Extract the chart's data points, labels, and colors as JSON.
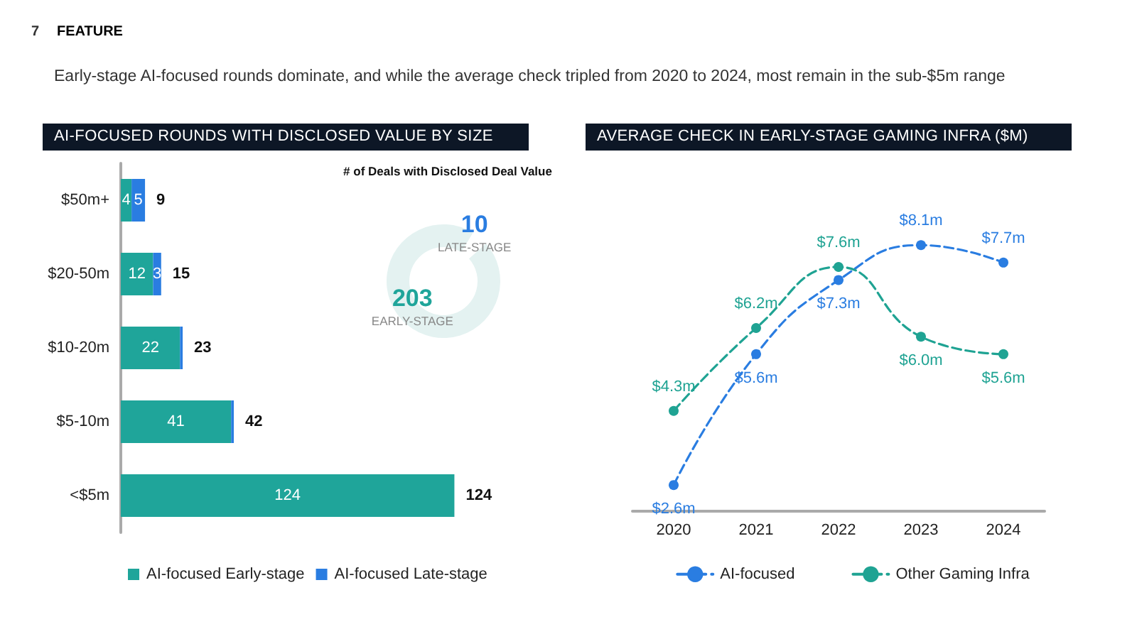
{
  "chart_data": [
    {
      "type": "bar",
      "orientation": "horizontal",
      "stacked": true,
      "title": "AI-FOCUSED ROUNDS WITH DISCLOSED VALUE BY SIZE",
      "subtitle": "Early-stage AI-focused rounds dominate, and while the average check tripled from 2020 to 2024, most remain in the sub-$5m range",
      "annotations": [
        "7",
        "FEATURE"
      ],
      "categories": [
        "$50m+",
        "$20-50m",
        "$10-20m",
        "$5-10m",
        "<$5m"
      ],
      "series": [
        {
          "name": "AI-focused Early-stage",
          "color": "#1fa59a",
          "values": [
            4,
            12,
            22,
            41,
            124
          ],
          "value_labels": [
            "4",
            "12",
            "22",
            "41",
            "124"
          ]
        },
        {
          "name": "AI-focused Late-stage",
          "color": "#2a7de1",
          "values": [
            5,
            3,
            1,
            1,
            0
          ],
          "value_labels": [
            "5",
            "3",
            null,
            null,
            null
          ]
        }
      ],
      "totals": [
        "9",
        "15",
        "23",
        "42",
        "124"
      ],
      "legend": "bottom",
      "grid": false
    },
    {
      "type": "donut",
      "title": "# of Deals with Disclosed Deal Value",
      "categories": [
        "EARLY-STAGE",
        "LATE-STAGE"
      ],
      "values": [
        203,
        10
      ],
      "colors": [
        "#e4f2f1",
        "#ffffff"
      ],
      "data_labels": true,
      "legend": false
    },
    {
      "type": "line",
      "title": "AVERAGE CHECK IN EARLY-STAGE GAMING INFRA ($M)",
      "categories": [
        "2020",
        "2021",
        "2022",
        "2023",
        "2024"
      ],
      "series": [
        {
          "name": "AI-focused",
          "color": "#2a7de1",
          "values": [
            2.6,
            5.6,
            7.3,
            8.1,
            7.7
          ],
          "value_labels": [
            "$2.6m",
            "$5.6m",
            "$7.3m",
            "$8.1m",
            "$7.7m"
          ]
        },
        {
          "name": "Other Gaming Infra",
          "color": "#1fa393",
          "values": [
            4.3,
            6.2,
            7.6,
            6.0,
            5.6
          ],
          "value_labels": [
            "$4.3m",
            "$6.2m",
            "$7.6m",
            "$6.0m",
            "$5.6m"
          ]
        }
      ],
      "marker": "circle",
      "line_style": "dashed",
      "legend": "bottom",
      "grid": false,
      "tick_labels": "x"
    }
  ]
}
